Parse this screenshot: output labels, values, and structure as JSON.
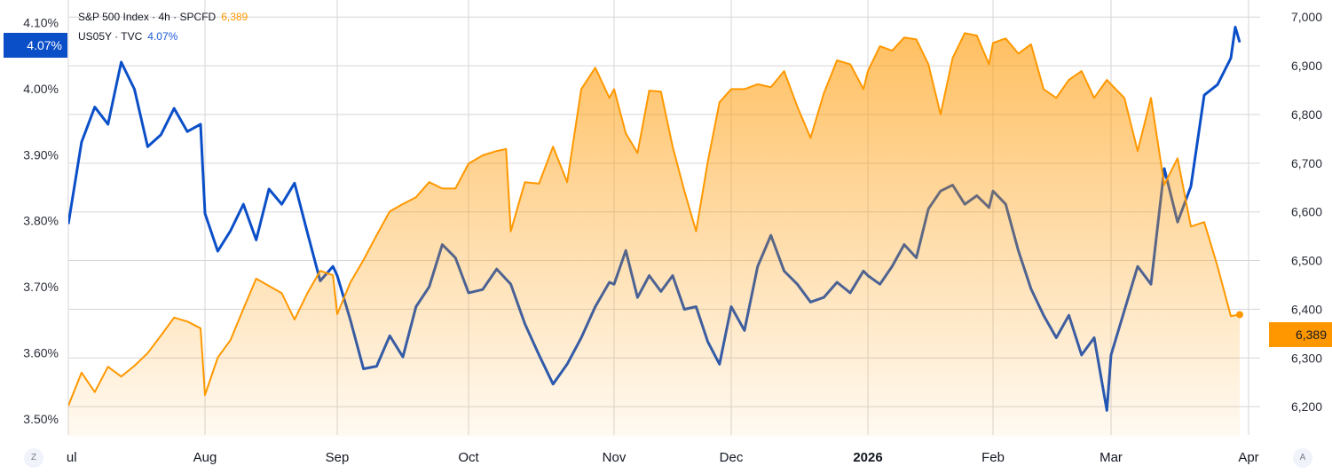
{
  "chart_data": {
    "type": "line",
    "legend": [
      {
        "label": "S&P 500 Index · 4h · SPCFD",
        "value": "6,389",
        "color": "#ff9800"
      },
      {
        "label": "US05Y · TVC",
        "value": "4.07%",
        "color": "#0b4fc8"
      }
    ],
    "x_ticks": [
      "Jul",
      "Aug",
      "Sep",
      "Oct",
      "Nov",
      "Dec",
      "2026",
      "Feb",
      "Mar",
      "Apr"
    ],
    "left_axis": {
      "ticks": [
        "4.10%",
        "4.00%",
        "3.90%",
        "3.80%",
        "3.70%",
        "3.60%",
        "3.50%"
      ],
      "ylim": [
        3.476,
        4.134
      ],
      "last_value_tag": "4.07%"
    },
    "right_axis": {
      "ticks": [
        "7,000",
        "6,900",
        "6,800",
        "6,700",
        "6,600",
        "6,500",
        "6,400",
        "6,300",
        "6,200"
      ],
      "ylim": [
        6142,
        7035
      ],
      "last_value_tag": "6,389"
    },
    "grid": true,
    "scale_buttons": {
      "left": "Z",
      "right": "A"
    },
    "series": [
      {
        "name": "US05Y · TVC",
        "axis": "left",
        "color": "#0b4fc8",
        "style": "line",
        "points": [
          [
            "2025-07-01",
            3.795
          ],
          [
            "2025-07-04",
            3.919
          ],
          [
            "2025-07-07",
            3.972
          ],
          [
            "2025-07-10",
            3.946
          ],
          [
            "2025-07-13",
            4.04
          ],
          [
            "2025-07-16",
            3.999
          ],
          [
            "2025-07-19",
            3.912
          ],
          [
            "2025-07-22",
            3.93
          ],
          [
            "2025-07-25",
            3.97
          ],
          [
            "2025-07-28",
            3.935
          ],
          [
            "2025-07-31",
            3.946
          ],
          [
            "2025-08-01",
            3.811
          ],
          [
            "2025-08-04",
            3.754
          ],
          [
            "2025-08-07",
            3.785
          ],
          [
            "2025-08-10",
            3.825
          ],
          [
            "2025-08-13",
            3.771
          ],
          [
            "2025-08-16",
            3.848
          ],
          [
            "2025-08-19",
            3.825
          ],
          [
            "2025-08-22",
            3.857
          ],
          [
            "2025-08-25",
            3.782
          ],
          [
            "2025-08-28",
            3.709
          ],
          [
            "2025-08-31",
            3.731
          ],
          [
            "2025-09-01",
            3.717
          ],
          [
            "2025-09-04",
            3.65
          ],
          [
            "2025-09-07",
            3.576
          ],
          [
            "2025-09-10",
            3.58
          ],
          [
            "2025-09-13",
            3.626
          ],
          [
            "2025-09-16",
            3.594
          ],
          [
            "2025-09-19",
            3.67
          ],
          [
            "2025-09-22",
            3.7
          ],
          [
            "2025-09-25",
            3.764
          ],
          [
            "2025-09-28",
            3.744
          ],
          [
            "2025-10-01",
            3.691
          ],
          [
            "2025-10-04",
            3.696
          ],
          [
            "2025-10-07",
            3.727
          ],
          [
            "2025-10-10",
            3.704
          ],
          [
            "2025-10-13",
            3.644
          ],
          [
            "2025-10-16",
            3.597
          ],
          [
            "2025-10-19",
            3.553
          ],
          [
            "2025-10-22",
            3.583
          ],
          [
            "2025-10-25",
            3.623
          ],
          [
            "2025-10-28",
            3.67
          ],
          [
            "2025-10-31",
            3.707
          ],
          [
            "2025-11-01",
            3.704
          ],
          [
            "2025-11-04",
            3.755
          ],
          [
            "2025-11-07",
            3.684
          ],
          [
            "2025-11-10",
            3.717
          ],
          [
            "2025-11-13",
            3.693
          ],
          [
            "2025-11-16",
            3.717
          ],
          [
            "2025-11-19",
            3.666
          ],
          [
            "2025-11-22",
            3.67
          ],
          [
            "2025-11-25",
            3.617
          ],
          [
            "2025-11-28",
            3.583
          ],
          [
            "2025-12-01",
            3.67
          ],
          [
            "2025-12-04",
            3.634
          ],
          [
            "2025-12-07",
            3.731
          ],
          [
            "2025-12-10",
            3.778
          ],
          [
            "2025-12-13",
            3.724
          ],
          [
            "2025-12-16",
            3.704
          ],
          [
            "2025-12-19",
            3.677
          ],
          [
            "2025-12-22",
            3.684
          ],
          [
            "2025-12-25",
            3.707
          ],
          [
            "2025-12-28",
            3.691
          ],
          [
            "2025-12-31",
            3.724
          ],
          [
            "2026-01-01",
            3.717
          ],
          [
            "2026-01-04",
            3.704
          ],
          [
            "2026-01-07",
            3.731
          ],
          [
            "2026-01-10",
            3.764
          ],
          [
            "2026-01-13",
            3.744
          ],
          [
            "2026-01-16",
            3.818
          ],
          [
            "2026-01-19",
            3.845
          ],
          [
            "2026-01-22",
            3.854
          ],
          [
            "2026-01-25",
            3.825
          ],
          [
            "2026-01-28",
            3.838
          ],
          [
            "2026-01-31",
            3.82
          ],
          [
            "2026-02-01",
            3.845
          ],
          [
            "2026-02-04",
            3.825
          ],
          [
            "2026-02-07",
            3.755
          ],
          [
            "2026-02-10",
            3.697
          ],
          [
            "2026-02-13",
            3.657
          ],
          [
            "2026-02-16",
            3.623
          ],
          [
            "2026-02-19",
            3.657
          ],
          [
            "2026-02-22",
            3.597
          ],
          [
            "2026-02-25",
            3.623
          ],
          [
            "2026-02-28",
            3.513
          ],
          [
            "2026-03-01",
            3.597
          ],
          [
            "2026-03-04",
            3.664
          ],
          [
            "2026-03-07",
            3.731
          ],
          [
            "2026-03-10",
            3.704
          ],
          [
            "2026-03-13",
            3.879
          ],
          [
            "2026-03-16",
            3.798
          ],
          [
            "2026-03-19",
            3.852
          ],
          [
            "2026-03-22",
            3.99
          ],
          [
            "2026-03-25",
            4.006
          ],
          [
            "2026-03-28",
            4.046
          ],
          [
            "2026-03-29",
            4.093
          ],
          [
            "2026-03-30",
            4.07
          ]
        ]
      },
      {
        "name": "S&P 500 Index · 4h · SPCFD",
        "axis": "right",
        "color": "#ff9800",
        "style": "area",
        "points": [
          [
            "2025-07-01",
            6202
          ],
          [
            "2025-07-04",
            6270
          ],
          [
            "2025-07-07",
            6230
          ],
          [
            "2025-07-10",
            6282
          ],
          [
            "2025-07-13",
            6262
          ],
          [
            "2025-07-16",
            6284
          ],
          [
            "2025-07-19",
            6310
          ],
          [
            "2025-07-22",
            6346
          ],
          [
            "2025-07-25",
            6383
          ],
          [
            "2025-07-28",
            6375
          ],
          [
            "2025-07-31",
            6361
          ],
          [
            "2025-08-01",
            6224
          ],
          [
            "2025-08-04",
            6301
          ],
          [
            "2025-08-07",
            6337
          ],
          [
            "2025-08-10",
            6401
          ],
          [
            "2025-08-13",
            6463
          ],
          [
            "2025-08-16",
            6448
          ],
          [
            "2025-08-19",
            6433
          ],
          [
            "2025-08-22",
            6379
          ],
          [
            "2025-08-25",
            6433
          ],
          [
            "2025-08-28",
            6479
          ],
          [
            "2025-08-31",
            6470
          ],
          [
            "2025-09-01",
            6390
          ],
          [
            "2025-09-04",
            6455
          ],
          [
            "2025-09-07",
            6501
          ],
          [
            "2025-09-10",
            6552
          ],
          [
            "2025-09-13",
            6601
          ],
          [
            "2025-09-16",
            6616
          ],
          [
            "2025-09-19",
            6630
          ],
          [
            "2025-09-22",
            6661
          ],
          [
            "2025-09-25",
            6648
          ],
          [
            "2025-09-28",
            6648
          ],
          [
            "2025-10-01",
            6699
          ],
          [
            "2025-10-04",
            6716
          ],
          [
            "2025-10-07",
            6725
          ],
          [
            "2025-10-09",
            6729
          ],
          [
            "2025-10-10",
            6560
          ],
          [
            "2025-10-13",
            6661
          ],
          [
            "2025-10-16",
            6658
          ],
          [
            "2025-10-19",
            6734
          ],
          [
            "2025-10-22",
            6661
          ],
          [
            "2025-10-25",
            6852
          ],
          [
            "2025-10-28",
            6896
          ],
          [
            "2025-10-31",
            6834
          ],
          [
            "2025-11-01",
            6852
          ],
          [
            "2025-11-04",
            6761
          ],
          [
            "2025-11-07",
            6721
          ],
          [
            "2025-11-10",
            6849
          ],
          [
            "2025-11-13",
            6847
          ],
          [
            "2025-11-16",
            6734
          ],
          [
            "2025-11-19",
            6643
          ],
          [
            "2025-11-22",
            6560
          ],
          [
            "2025-11-25",
            6703
          ],
          [
            "2025-11-28",
            6825
          ],
          [
            "2025-12-01",
            6852
          ],
          [
            "2025-12-04",
            6852
          ],
          [
            "2025-12-07",
            6862
          ],
          [
            "2025-12-10",
            6856
          ],
          [
            "2025-12-13",
            6889
          ],
          [
            "2025-12-16",
            6816
          ],
          [
            "2025-12-19",
            6752
          ],
          [
            "2025-12-22",
            6843
          ],
          [
            "2025-12-25",
            6911
          ],
          [
            "2025-12-28",
            6903
          ],
          [
            "2025-12-31",
            6852
          ],
          [
            "2026-01-01",
            6889
          ],
          [
            "2026-01-04",
            6940
          ],
          [
            "2026-01-07",
            6931
          ],
          [
            "2026-01-10",
            6958
          ],
          [
            "2026-01-13",
            6954
          ],
          [
            "2026-01-16",
            6903
          ],
          [
            "2026-01-19",
            6800
          ],
          [
            "2026-01-22",
            6916
          ],
          [
            "2026-01-25",
            6967
          ],
          [
            "2026-01-28",
            6962
          ],
          [
            "2026-01-31",
            6903
          ],
          [
            "2026-02-01",
            6947
          ],
          [
            "2026-02-04",
            6956
          ],
          [
            "2026-02-07",
            6925
          ],
          [
            "2026-02-10",
            6944
          ],
          [
            "2026-02-13",
            6852
          ],
          [
            "2026-02-16",
            6834
          ],
          [
            "2026-02-19",
            6871
          ],
          [
            "2026-02-22",
            6889
          ],
          [
            "2026-02-25",
            6834
          ],
          [
            "2026-02-28",
            6871
          ],
          [
            "2026-03-01",
            6862
          ],
          [
            "2026-03-04",
            6834
          ],
          [
            "2026-03-07",
            6725
          ],
          [
            "2026-03-10",
            6834
          ],
          [
            "2026-03-13",
            6656
          ],
          [
            "2026-03-16",
            6710
          ],
          [
            "2026-03-19",
            6570
          ],
          [
            "2026-03-22",
            6579
          ],
          [
            "2026-03-25",
            6488
          ],
          [
            "2026-03-28",
            6386
          ],
          [
            "2026-03-30",
            6389
          ]
        ]
      }
    ]
  }
}
